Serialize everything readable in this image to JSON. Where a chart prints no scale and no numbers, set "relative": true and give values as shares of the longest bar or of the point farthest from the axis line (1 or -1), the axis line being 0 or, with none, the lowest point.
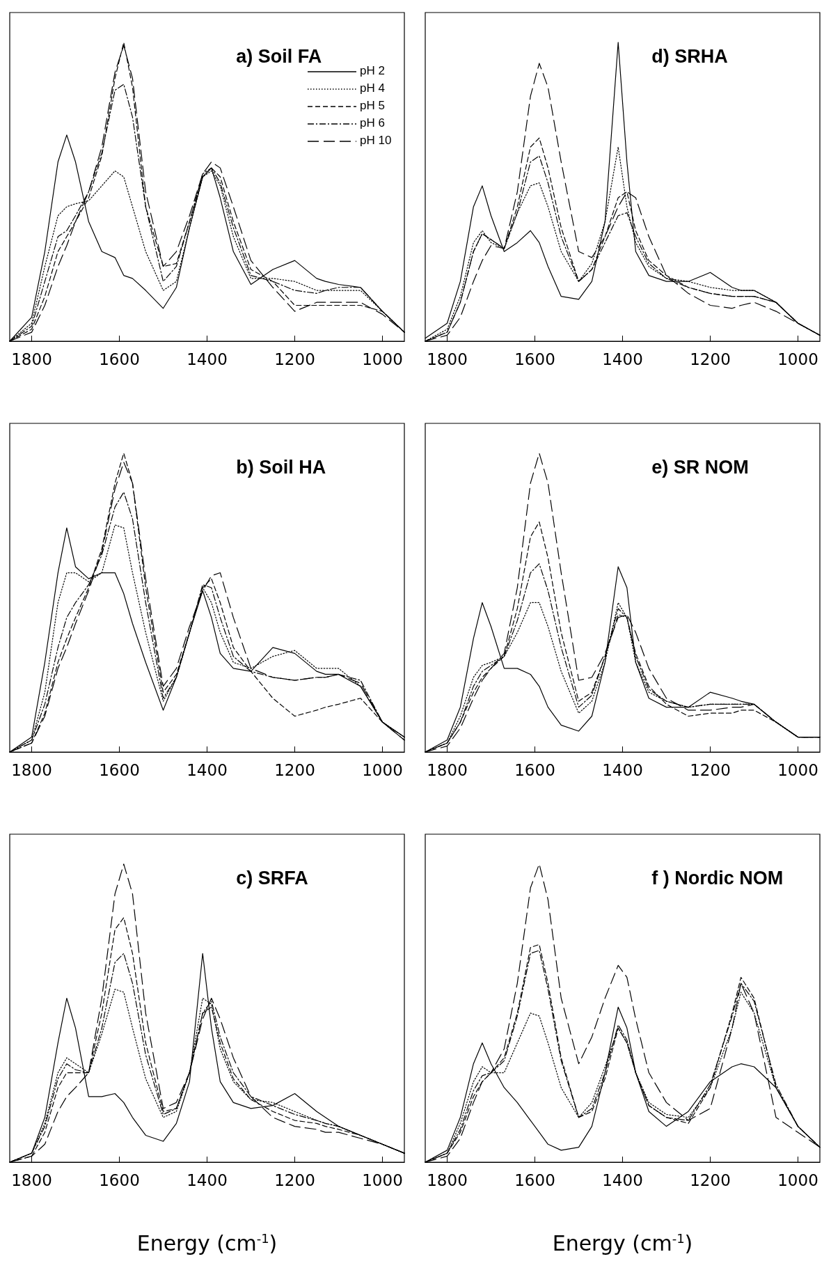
{
  "chart_data": [
    {
      "type": "line",
      "title": "a) Soil FA",
      "relative": true,
      "tick_labels": "x",
      "grid": false,
      "marker": "none",
      "legend": "top right",
      "xlim": [
        1850,
        950
      ],
      "xticks": [
        1800,
        1600,
        1400,
        1200,
        1000
      ],
      "x": [
        1850,
        1800,
        1770,
        1740,
        1720,
        1700,
        1670,
        1640,
        1610,
        1590,
        1570,
        1540,
        1500,
        1470,
        1440,
        1410,
        1390,
        1370,
        1340,
        1300,
        1250,
        1200,
        1150,
        1130,
        1100,
        1050,
        1000,
        950
      ],
      "series": [
        {
          "name": "pH 2",
          "color": "#000000",
          "line_style": "solid",
          "values": [
            0,
            0.08,
            0.3,
            0.6,
            0.69,
            0.6,
            0.4,
            0.3,
            0.28,
            0.22,
            0.21,
            0.17,
            0.11,
            0.18,
            0.38,
            0.55,
            0.58,
            0.48,
            0.3,
            0.19,
            0.24,
            0.27,
            0.21,
            0.2,
            0.19,
            0.18,
            0.1,
            0.03
          ]
        },
        {
          "name": "pH 4",
          "color": "#000000",
          "line_style": "dotted",
          "values": [
            0,
            0.06,
            0.25,
            0.42,
            0.45,
            0.46,
            0.47,
            0.52,
            0.57,
            0.55,
            0.45,
            0.3,
            0.17,
            0.2,
            0.38,
            0.55,
            0.57,
            0.52,
            0.35,
            0.21,
            0.21,
            0.2,
            0.17,
            0.17,
            0.17,
            0.17,
            0.1,
            0.03
          ]
        },
        {
          "name": "pH 5",
          "color": "#000000",
          "line_style": "dashed",
          "values": [
            0,
            0.04,
            0.15,
            0.3,
            0.35,
            0.4,
            0.48,
            0.62,
            0.88,
            1,
            0.85,
            0.45,
            0.25,
            0.26,
            0.4,
            0.55,
            0.58,
            0.55,
            0.4,
            0.24,
            0.2,
            0.12,
            0.12,
            0.12,
            0.12,
            0.12,
            0.1,
            0.03
          ]
        },
        {
          "name": "pH 6",
          "color": "#000000",
          "line_style": "dashdot",
          "values": [
            0,
            0.05,
            0.2,
            0.35,
            0.37,
            0.42,
            0.5,
            0.63,
            0.84,
            0.86,
            0.75,
            0.45,
            0.2,
            0.25,
            0.4,
            0.56,
            0.58,
            0.53,
            0.38,
            0.22,
            0.2,
            0.17,
            0.16,
            0.17,
            0.18,
            0.18,
            0.1,
            0.03
          ]
        },
        {
          "name": "pH 10",
          "color": "#000000",
          "line_style": "longdash",
          "values": [
            0,
            0.03,
            0.12,
            0.25,
            0.32,
            0.4,
            0.5,
            0.65,
            0.9,
            0.99,
            0.88,
            0.5,
            0.25,
            0.3,
            0.42,
            0.56,
            0.6,
            0.58,
            0.45,
            0.27,
            0.18,
            0.1,
            0.13,
            0.13,
            0.13,
            0.13,
            0.09,
            0.03
          ]
        }
      ]
    },
    {
      "type": "line",
      "title": "d) SRHA",
      "relative": true,
      "tick_labels": "x",
      "grid": false,
      "marker": "none",
      "xlim": [
        1850,
        950
      ],
      "xticks": [
        1800,
        1600,
        1400,
        1200,
        1000
      ],
      "x": [
        1850,
        1800,
        1770,
        1740,
        1720,
        1700,
        1670,
        1640,
        1610,
        1590,
        1570,
        1540,
        1500,
        1470,
        1440,
        1410,
        1390,
        1370,
        1340,
        1300,
        1250,
        1200,
        1150,
        1130,
        1100,
        1050,
        1000,
        950
      ],
      "series": [
        {
          "color": "#000000",
          "line_style": "solid",
          "values": [
            0.01,
            0.06,
            0.2,
            0.45,
            0.52,
            0.42,
            0.3,
            0.33,
            0.37,
            0.33,
            0.25,
            0.15,
            0.14,
            0.2,
            0.4,
            1,
            0.6,
            0.3,
            0.22,
            0.2,
            0.2,
            0.23,
            0.18,
            0.17,
            0.17,
            0.13,
            0.06,
            0.02
          ]
        },
        {
          "color": "#000000",
          "line_style": "dotted",
          "values": [
            0,
            0.04,
            0.15,
            0.33,
            0.37,
            0.33,
            0.31,
            0.43,
            0.52,
            0.53,
            0.45,
            0.3,
            0.2,
            0.26,
            0.4,
            0.65,
            0.45,
            0.33,
            0.25,
            0.21,
            0.2,
            0.18,
            0.17,
            0.17,
            0.17,
            0.13,
            0.06,
            0.02
          ]
        },
        {
          "color": "#000000",
          "line_style": "dashed",
          "values": [
            0,
            0.03,
            0.13,
            0.3,
            0.36,
            0.34,
            0.31,
            0.45,
            0.65,
            0.68,
            0.58,
            0.38,
            0.2,
            0.24,
            0.35,
            0.48,
            0.5,
            0.37,
            0.27,
            0.22,
            0.18,
            0.16,
            0.15,
            0.15,
            0.15,
            0.13,
            0.06,
            0.02
          ]
        },
        {
          "color": "#000000",
          "line_style": "dashdot",
          "values": [
            0,
            0.03,
            0.13,
            0.3,
            0.36,
            0.34,
            0.31,
            0.43,
            0.6,
            0.62,
            0.53,
            0.35,
            0.2,
            0.24,
            0.33,
            0.42,
            0.43,
            0.35,
            0.26,
            0.21,
            0.18,
            0.16,
            0.15,
            0.15,
            0.15,
            0.13,
            0.06,
            0.02
          ]
        },
        {
          "color": "#000000",
          "line_style": "longdash",
          "values": [
            0,
            0.02,
            0.08,
            0.2,
            0.27,
            0.32,
            0.31,
            0.5,
            0.82,
            0.93,
            0.85,
            0.6,
            0.3,
            0.28,
            0.35,
            0.45,
            0.5,
            0.48,
            0.35,
            0.22,
            0.16,
            0.12,
            0.11,
            0.12,
            0.13,
            0.1,
            0.06,
            0.02
          ]
        }
      ]
    },
    {
      "type": "line",
      "title": "b) Soil HA",
      "relative": true,
      "tick_labels": "x",
      "grid": false,
      "marker": "none",
      "xlim": [
        1850,
        950
      ],
      "xticks": [
        1800,
        1600,
        1400,
        1200,
        1000
      ],
      "x": [
        1850,
        1800,
        1770,
        1740,
        1720,
        1700,
        1670,
        1640,
        1610,
        1590,
        1570,
        1540,
        1500,
        1470,
        1440,
        1410,
        1390,
        1370,
        1340,
        1300,
        1250,
        1200,
        1150,
        1130,
        1100,
        1050,
        1000,
        950
      ],
      "series": [
        {
          "color": "#000000",
          "line_style": "solid",
          "values": [
            0,
            0.05,
            0.3,
            0.6,
            0.75,
            0.62,
            0.58,
            0.6,
            0.6,
            0.53,
            0.43,
            0.3,
            0.14,
            0.25,
            0.4,
            0.54,
            0.45,
            0.33,
            0.28,
            0.27,
            0.35,
            0.33,
            0.27,
            0.26,
            0.26,
            0.22,
            0.1,
            0.05
          ]
        },
        {
          "color": "#000000",
          "line_style": "dotted",
          "values": [
            0,
            0.04,
            0.2,
            0.5,
            0.6,
            0.6,
            0.57,
            0.6,
            0.76,
            0.75,
            0.6,
            0.4,
            0.17,
            0.25,
            0.4,
            0.55,
            0.5,
            0.4,
            0.3,
            0.28,
            0.32,
            0.34,
            0.28,
            0.28,
            0.28,
            0.22,
            0.1,
            0.05
          ]
        },
        {
          "color": "#000000",
          "line_style": "dashed",
          "values": [
            0,
            0.03,
            0.13,
            0.3,
            0.38,
            0.45,
            0.55,
            0.68,
            0.9,
            1,
            0.9,
            0.55,
            0.2,
            0.26,
            0.4,
            0.55,
            0.58,
            0.5,
            0.35,
            0.27,
            0.18,
            0.12,
            0.14,
            0.15,
            0.16,
            0.18,
            0.1,
            0.04
          ]
        },
        {
          "color": "#000000",
          "line_style": "dashdot",
          "values": [
            0,
            0.04,
            0.16,
            0.35,
            0.45,
            0.5,
            0.56,
            0.66,
            0.82,
            0.87,
            0.78,
            0.5,
            0.18,
            0.25,
            0.4,
            0.56,
            0.55,
            0.45,
            0.32,
            0.27,
            0.25,
            0.24,
            0.25,
            0.25,
            0.26,
            0.24,
            0.1,
            0.05
          ]
        },
        {
          "color": "#000000",
          "line_style": "longdash",
          "values": [
            0,
            0.03,
            0.12,
            0.28,
            0.35,
            0.43,
            0.54,
            0.67,
            0.88,
            0.97,
            0.9,
            0.58,
            0.22,
            0.28,
            0.42,
            0.54,
            0.59,
            0.6,
            0.45,
            0.28,
            0.25,
            0.24,
            0.25,
            0.25,
            0.26,
            0.23,
            0.1,
            0.04
          ]
        }
      ]
    },
    {
      "type": "line",
      "title": "e) SR NOM",
      "relative": true,
      "tick_labels": "x",
      "grid": false,
      "marker": "none",
      "xlim": [
        1850,
        950
      ],
      "xticks": [
        1800,
        1600,
        1400,
        1200,
        1000
      ],
      "x": [
        1850,
        1800,
        1770,
        1740,
        1720,
        1700,
        1670,
        1640,
        1610,
        1590,
        1570,
        1540,
        1500,
        1470,
        1440,
        1410,
        1390,
        1370,
        1340,
        1300,
        1250,
        1200,
        1150,
        1130,
        1100,
        1050,
        1000,
        950
      ],
      "series": [
        {
          "color": "#000000",
          "line_style": "solid",
          "values": [
            0,
            0.04,
            0.15,
            0.38,
            0.5,
            0.42,
            0.28,
            0.28,
            0.26,
            0.22,
            0.15,
            0.09,
            0.07,
            0.12,
            0.3,
            0.62,
            0.55,
            0.3,
            0.18,
            0.15,
            0.15,
            0.2,
            0.18,
            0.17,
            0.16,
            0.1,
            0.05,
            0.05
          ]
        },
        {
          "color": "#000000",
          "line_style": "dotted",
          "values": [
            0,
            0.03,
            0.12,
            0.25,
            0.29,
            0.3,
            0.32,
            0.4,
            0.5,
            0.5,
            0.42,
            0.27,
            0.13,
            0.17,
            0.3,
            0.5,
            0.45,
            0.3,
            0.2,
            0.17,
            0.15,
            0.16,
            0.16,
            0.16,
            0.16,
            0.1,
            0.05,
            0.05
          ]
        },
        {
          "color": "#000000",
          "line_style": "dashed",
          "values": [
            0,
            0.03,
            0.1,
            0.2,
            0.25,
            0.28,
            0.32,
            0.48,
            0.72,
            0.77,
            0.65,
            0.4,
            0.17,
            0.2,
            0.32,
            0.46,
            0.45,
            0.33,
            0.22,
            0.16,
            0.12,
            0.13,
            0.13,
            0.14,
            0.14,
            0.1,
            0.05,
            0.05
          ]
        },
        {
          "color": "#000000",
          "line_style": "dashdot",
          "values": [
            0,
            0.03,
            0.1,
            0.22,
            0.27,
            0.29,
            0.32,
            0.44,
            0.6,
            0.63,
            0.54,
            0.35,
            0.15,
            0.19,
            0.32,
            0.48,
            0.45,
            0.32,
            0.21,
            0.17,
            0.15,
            0.16,
            0.16,
            0.16,
            0.16,
            0.1,
            0.05,
            0.05
          ]
        },
        {
          "color": "#000000",
          "line_style": "longdash",
          "values": [
            0,
            0.02,
            0.08,
            0.18,
            0.24,
            0.28,
            0.33,
            0.55,
            0.9,
            1,
            0.9,
            0.6,
            0.24,
            0.25,
            0.33,
            0.45,
            0.46,
            0.4,
            0.28,
            0.18,
            0.14,
            0.14,
            0.15,
            0.15,
            0.16,
            0.1,
            0.05,
            0.05
          ]
        }
      ]
    },
    {
      "type": "line",
      "title": "c) SRFA",
      "xlabel": "Energy (cm$^{-1}$)",
      "relative": true,
      "tick_labels": "x",
      "grid": false,
      "marker": "none",
      "xlim": [
        1850,
        950
      ],
      "xticks": [
        1800,
        1600,
        1400,
        1200,
        1000
      ],
      "x": [
        1850,
        1800,
        1770,
        1740,
        1720,
        1700,
        1670,
        1640,
        1610,
        1590,
        1570,
        1540,
        1500,
        1470,
        1440,
        1410,
        1390,
        1370,
        1340,
        1300,
        1250,
        1200,
        1150,
        1130,
        1100,
        1050,
        1000,
        950
      ],
      "series": [
        {
          "color": "#000000",
          "line_style": "solid",
          "values": [
            0,
            0.03,
            0.15,
            0.4,
            0.55,
            0.45,
            0.22,
            0.22,
            0.23,
            0.2,
            0.15,
            0.09,
            0.07,
            0.13,
            0.27,
            0.7,
            0.45,
            0.27,
            0.2,
            0.18,
            0.19,
            0.23,
            0.17,
            0.15,
            0.12,
            0.09,
            0.06,
            0.03
          ]
        },
        {
          "color": "#000000",
          "line_style": "dotted",
          "values": [
            0,
            0.03,
            0.13,
            0.3,
            0.35,
            0.33,
            0.3,
            0.43,
            0.58,
            0.57,
            0.45,
            0.28,
            0.15,
            0.17,
            0.3,
            0.55,
            0.53,
            0.38,
            0.27,
            0.21,
            0.2,
            0.17,
            0.14,
            0.13,
            0.12,
            0.09,
            0.06,
            0.03
          ]
        },
        {
          "color": "#000000",
          "line_style": "dashed",
          "values": [
            0,
            0.02,
            0.1,
            0.25,
            0.3,
            0.3,
            0.3,
            0.5,
            0.78,
            0.82,
            0.7,
            0.4,
            0.17,
            0.18,
            0.3,
            0.5,
            0.52,
            0.4,
            0.28,
            0.21,
            0.17,
            0.14,
            0.13,
            0.12,
            0.11,
            0.09,
            0.06,
            0.03
          ]
        },
        {
          "color": "#000000",
          "line_style": "dashdot",
          "values": [
            0,
            0.03,
            0.12,
            0.28,
            0.33,
            0.31,
            0.3,
            0.45,
            0.67,
            0.7,
            0.6,
            0.36,
            0.16,
            0.18,
            0.3,
            0.5,
            0.54,
            0.42,
            0.3,
            0.22,
            0.19,
            0.16,
            0.14,
            0.13,
            0.12,
            0.09,
            0.06,
            0.03
          ]
        },
        {
          "color": "#000000",
          "line_style": "longdash",
          "values": [
            0,
            0.02,
            0.06,
            0.17,
            0.22,
            0.25,
            0.3,
            0.55,
            0.9,
            1,
            0.9,
            0.5,
            0.18,
            0.2,
            0.3,
            0.48,
            0.55,
            0.48,
            0.35,
            0.22,
            0.15,
            0.12,
            0.11,
            0.1,
            0.1,
            0.08,
            0.06,
            0.03
          ]
        }
      ]
    },
    {
      "type": "line",
      "title": "f ) Nordic NOM",
      "xlabel": "Energy (cm$^{-1}$)",
      "relative": true,
      "tick_labels": "x",
      "grid": false,
      "marker": "none",
      "xlim": [
        1850,
        950
      ],
      "xticks": [
        1800,
        1600,
        1400,
        1200,
        1000
      ],
      "x": [
        1850,
        1800,
        1770,
        1740,
        1720,
        1700,
        1670,
        1640,
        1610,
        1590,
        1570,
        1540,
        1500,
        1470,
        1440,
        1410,
        1390,
        1370,
        1340,
        1300,
        1250,
        1200,
        1150,
        1130,
        1100,
        1050,
        1000,
        950
      ],
      "series": [
        {
          "color": "#000000",
          "line_style": "solid",
          "values": [
            0,
            0.04,
            0.15,
            0.33,
            0.4,
            0.33,
            0.25,
            0.2,
            0.14,
            0.1,
            0.06,
            0.04,
            0.05,
            0.12,
            0.3,
            0.52,
            0.45,
            0.3,
            0.17,
            0.12,
            0.17,
            0.27,
            0.32,
            0.33,
            0.32,
            0.25,
            0.12,
            0.05
          ]
        },
        {
          "color": "#000000",
          "line_style": "dotted",
          "values": [
            0,
            0.03,
            0.13,
            0.27,
            0.32,
            0.3,
            0.3,
            0.4,
            0.5,
            0.49,
            0.4,
            0.25,
            0.15,
            0.2,
            0.32,
            0.45,
            0.4,
            0.3,
            0.2,
            0.16,
            0.15,
            0.25,
            0.45,
            0.57,
            0.5,
            0.25,
            0.12,
            0.05
          ]
        },
        {
          "color": "#000000",
          "line_style": "dashed",
          "values": [
            0,
            0.03,
            0.1,
            0.22,
            0.27,
            0.3,
            0.35,
            0.5,
            0.72,
            0.73,
            0.6,
            0.35,
            0.15,
            0.17,
            0.28,
            0.45,
            0.4,
            0.3,
            0.19,
            0.15,
            0.13,
            0.25,
            0.5,
            0.62,
            0.55,
            0.25,
            0.12,
            0.05
          ]
        },
        {
          "color": "#000000",
          "line_style": "dashdot",
          "values": [
            0,
            0.03,
            0.11,
            0.24,
            0.29,
            0.3,
            0.34,
            0.49,
            0.7,
            0.71,
            0.58,
            0.34,
            0.15,
            0.18,
            0.3,
            0.46,
            0.41,
            0.3,
            0.19,
            0.15,
            0.14,
            0.26,
            0.49,
            0.6,
            0.54,
            0.26,
            0.12,
            0.05
          ]
        },
        {
          "color": "#000000",
          "line_style": "longdash",
          "values": [
            0,
            0.02,
            0.08,
            0.2,
            0.27,
            0.3,
            0.38,
            0.6,
            0.92,
            1,
            0.88,
            0.55,
            0.33,
            0.42,
            0.55,
            0.66,
            0.62,
            0.48,
            0.3,
            0.2,
            0.14,
            0.18,
            0.45,
            0.6,
            0.5,
            0.15,
            0.1,
            0.05
          ]
        }
      ]
    }
  ]
}
